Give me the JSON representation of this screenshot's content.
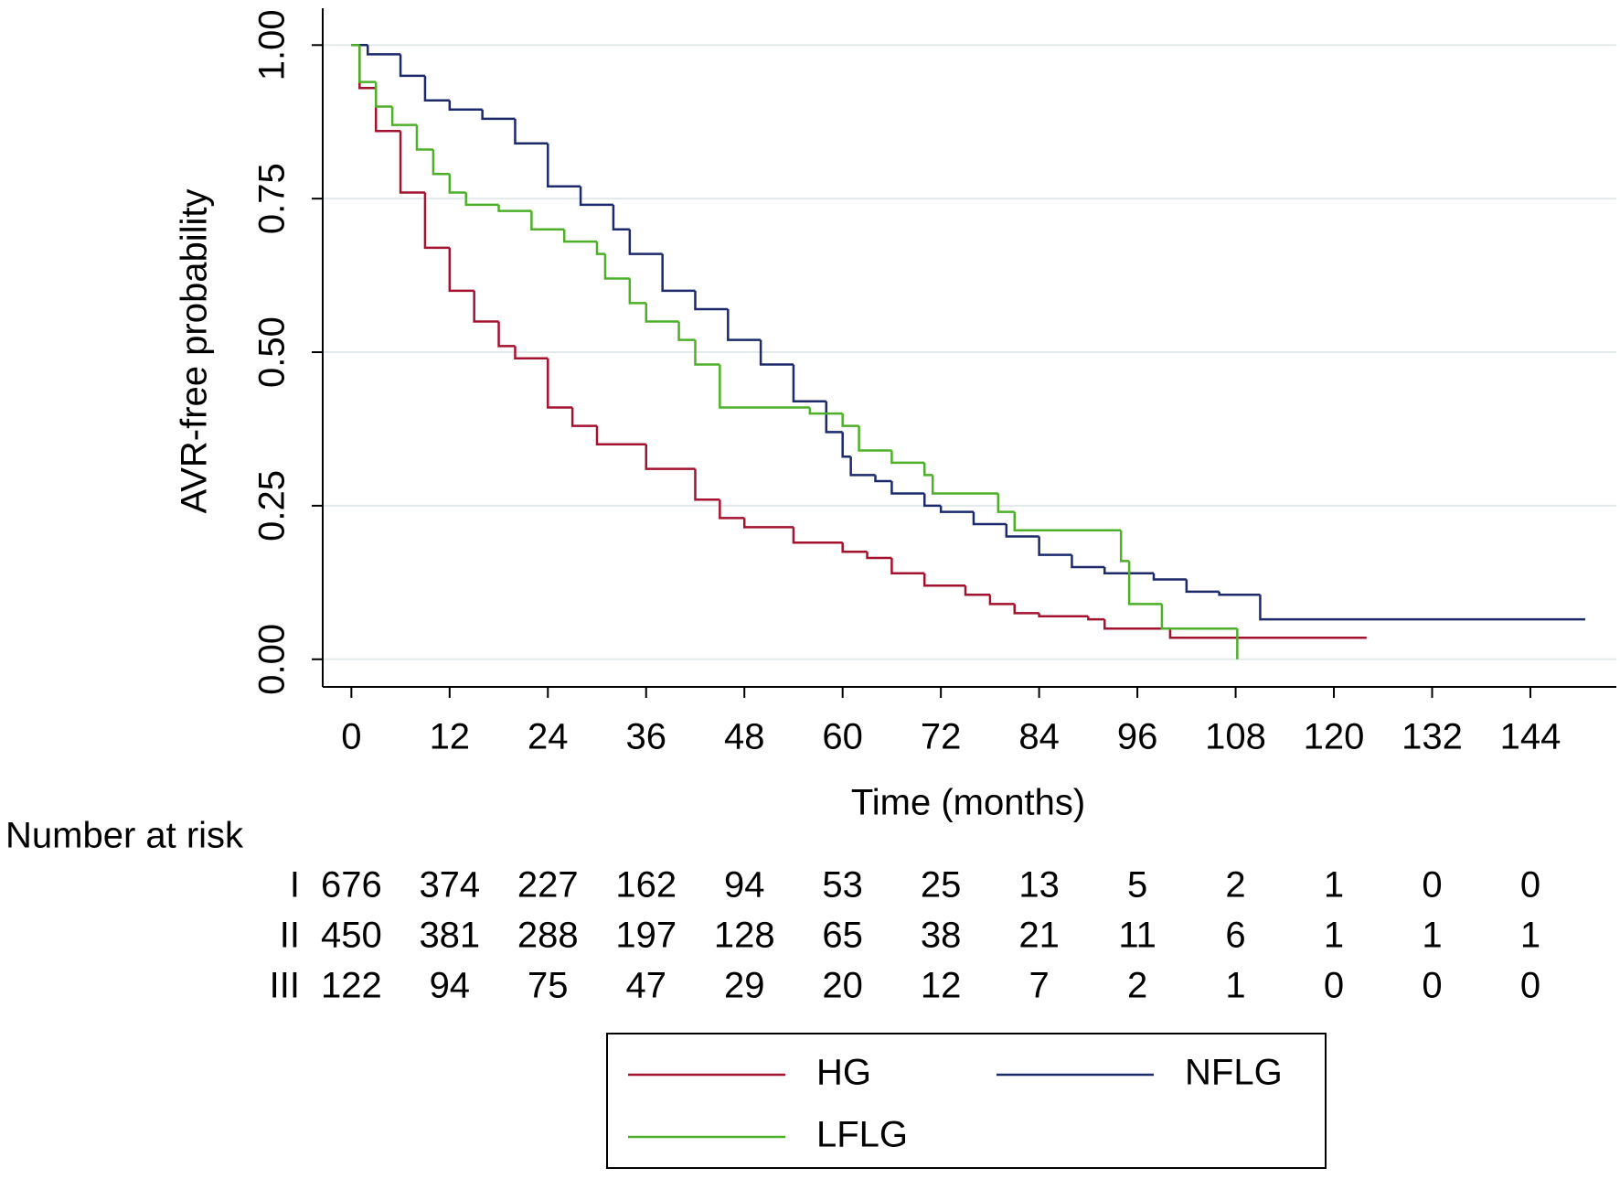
{
  "chart_data": {
    "type": "step",
    "y_label": "AVR-free probability",
    "x_label": "Time (months)",
    "xlim": [
      -3.5,
      154.5
    ],
    "ylim": [
      -0.045,
      1.06
    ],
    "xticks": [
      0,
      12,
      24,
      36,
      48,
      60,
      72,
      84,
      96,
      108,
      120,
      132,
      144
    ],
    "yticks": [
      {
        "value": 0,
        "label": "0.00"
      },
      {
        "value": 0.25,
        "label": "0.25"
      },
      {
        "value": 0.5,
        "label": "0.50"
      },
      {
        "value": 0.75,
        "label": "0.75"
      },
      {
        "value": 1,
        "label": "1.00"
      }
    ],
    "grid": true,
    "legend": "bottom",
    "series": [
      {
        "name": "HG",
        "color": "#a3132f",
        "x": [
          0,
          1,
          3,
          6,
          9,
          12,
          15,
          18,
          20,
          24,
          27,
          30,
          36,
          42,
          45,
          48,
          54,
          60,
          63,
          66,
          70,
          75,
          78,
          81,
          84,
          90,
          92,
          99,
          100,
          124
        ],
        "values": [
          1.0,
          0.93,
          0.86,
          0.76,
          0.67,
          0.6,
          0.55,
          0.51,
          0.49,
          0.41,
          0.38,
          0.35,
          0.31,
          0.26,
          0.23,
          0.215,
          0.19,
          0.175,
          0.165,
          0.14,
          0.12,
          0.105,
          0.09,
          0.075,
          0.07,
          0.065,
          0.05,
          0.05,
          0.035,
          0.035
        ]
      },
      {
        "name": "NFLG",
        "color": "#1c2a6b",
        "x": [
          0,
          2,
          6,
          9,
          12,
          16,
          20,
          24,
          28,
          32,
          34,
          38,
          42,
          46,
          50,
          54,
          58,
          60,
          61,
          64,
          66,
          70,
          72,
          76,
          80,
          84,
          88,
          92,
          98,
          102,
          106,
          111,
          150.7
        ],
        "values": [
          1.0,
          0.985,
          0.95,
          0.91,
          0.895,
          0.88,
          0.84,
          0.77,
          0.74,
          0.7,
          0.66,
          0.6,
          0.57,
          0.52,
          0.48,
          0.42,
          0.37,
          0.33,
          0.3,
          0.29,
          0.27,
          0.25,
          0.24,
          0.22,
          0.2,
          0.17,
          0.15,
          0.14,
          0.13,
          0.11,
          0.105,
          0.065,
          0.065
        ]
      },
      {
        "name": "LFLG",
        "color": "#4daf2a",
        "x": [
          0,
          1,
          3,
          5,
          8,
          10,
          12,
          14,
          18,
          22,
          26,
          30,
          31,
          34,
          36,
          40,
          42,
          45,
          56,
          60,
          62,
          66,
          70,
          71,
          79,
          81,
          94,
          95,
          99,
          108.2
        ],
        "values": [
          1.0,
          0.94,
          0.9,
          0.87,
          0.83,
          0.79,
          0.76,
          0.74,
          0.73,
          0.7,
          0.68,
          0.66,
          0.62,
          0.58,
          0.55,
          0.52,
          0.48,
          0.41,
          0.4,
          0.38,
          0.34,
          0.32,
          0.3,
          0.27,
          0.24,
          0.21,
          0.16,
          0.09,
          0.05,
          0.0
        ]
      }
    ],
    "risk_table": {
      "title": "Number at risk",
      "rows": [
        {
          "label": "I",
          "values": [
            676,
            374,
            227,
            162,
            94,
            53,
            25,
            13,
            5,
            2,
            1,
            0,
            0
          ]
        },
        {
          "label": "II",
          "values": [
            450,
            381,
            288,
            197,
            128,
            65,
            38,
            21,
            11,
            6,
            1,
            1,
            1
          ]
        },
        {
          "label": "III",
          "values": [
            122,
            94,
            75,
            47,
            29,
            20,
            12,
            7,
            2,
            1,
            0,
            0,
            0
          ]
        }
      ]
    }
  }
}
